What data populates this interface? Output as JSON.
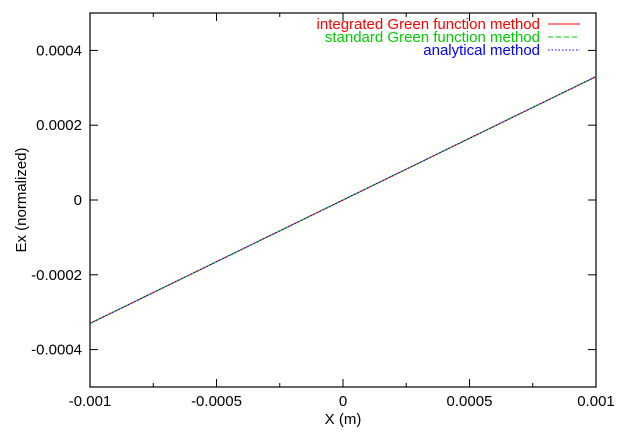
{
  "chart_data": {
    "type": "line",
    "title": "",
    "xlabel": "X (m)",
    "ylabel": "Ex (normalized)",
    "xlim": [
      -0.001,
      0.001
    ],
    "ylim": [
      -0.0005,
      0.0005
    ],
    "x_ticks": [
      -0.001,
      -0.0005,
      0,
      0.0005,
      0.001
    ],
    "x_tick_labels": [
      "-0.001",
      "-0.0005",
      "0",
      "0.0005",
      "0.001"
    ],
    "y_ticks": [
      -0.0004,
      -0.0002,
      0,
      0.0002,
      0.0004
    ],
    "y_tick_labels": [
      "-0.0004",
      "-0.0002",
      "0",
      "0.0002",
      "0.0004"
    ],
    "grid": false,
    "legend_position": "top-right",
    "series": [
      {
        "name": "integrated Green function method",
        "color": "#ff0000",
        "dash": "solid",
        "x": [
          -0.001,
          0.001
        ],
        "y": [
          -0.00033,
          0.00033
        ]
      },
      {
        "name": "standard Green function method",
        "color": "#00cc00",
        "dash": "dashed",
        "x": [
          -0.001,
          0.001
        ],
        "y": [
          -0.00033,
          0.00033
        ]
      },
      {
        "name": "analytical method",
        "color": "#0000ff",
        "dash": "dotted",
        "x": [
          -0.001,
          0.001
        ],
        "y": [
          -0.00033,
          0.00033
        ]
      }
    ]
  }
}
